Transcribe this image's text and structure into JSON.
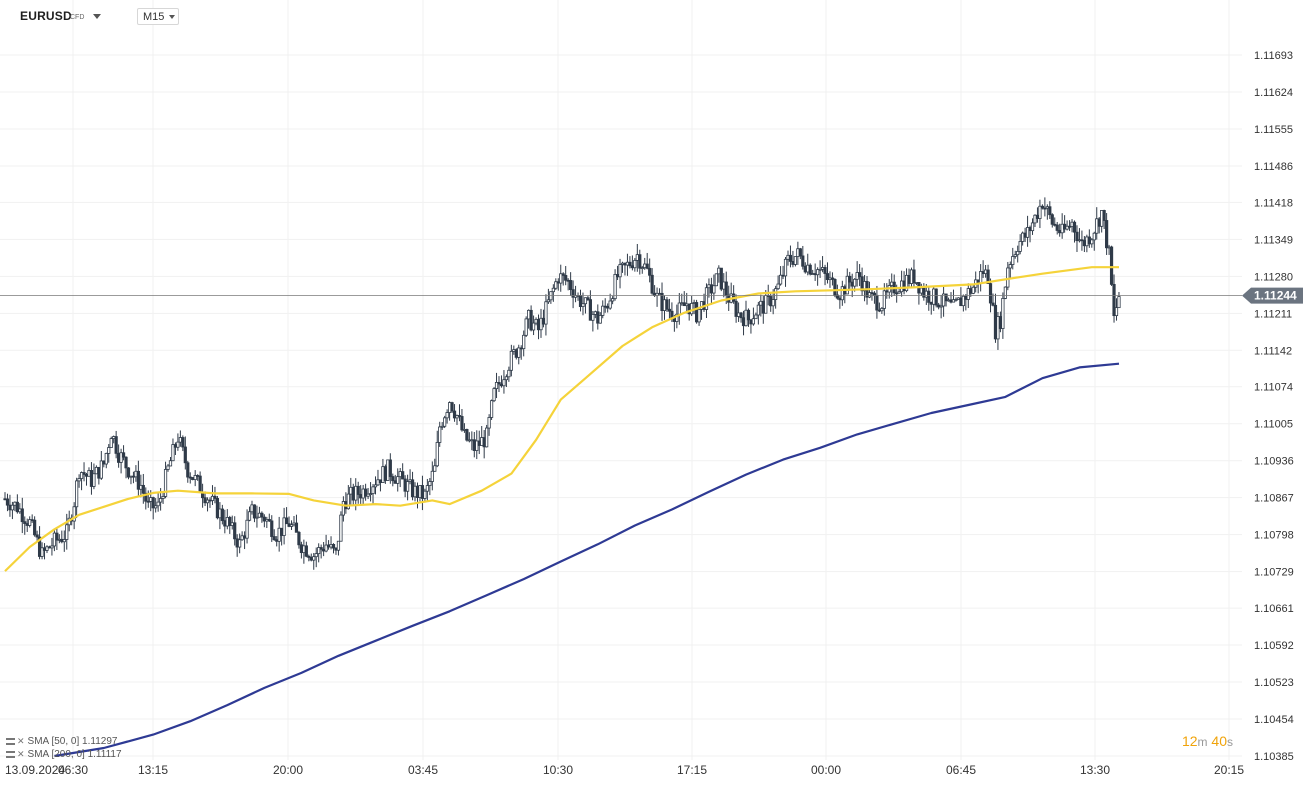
{
  "header": {
    "symbol": "EURUSD",
    "instrument_type": "CFD",
    "timeframe": "M15"
  },
  "indicators": [
    {
      "label": "SMA [50, 0]",
      "value": "1.11297",
      "color": "#f5d33a"
    },
    {
      "label": "SMA [200, 0]",
      "value": "1.11117",
      "color": "#2e3a94"
    }
  ],
  "countdown": {
    "minutes": "12",
    "minute_unit": "m",
    "seconds": "40",
    "second_unit": "s"
  },
  "colors": {
    "candle": "#2f3a48",
    "grid": "#f1f1f1",
    "price_line": "#7a7a7a",
    "price_badge": "#6b7480"
  },
  "chart_data": {
    "type": "candlestick",
    "symbol": "EURUSD",
    "timeframe": "M15",
    "current_price": 1.11244,
    "y_ticks": [
      "1.11693",
      "1.11624",
      "1.11555",
      "1.11486",
      "1.11418",
      "1.11349",
      "1.11280",
      "1.11211",
      "1.11142",
      "1.11074",
      "1.11005",
      "1.10936",
      "1.10867",
      "1.10798",
      "1.10729",
      "1.10661",
      "1.10592",
      "1.10523",
      "1.10454",
      "1.10385"
    ],
    "x_ticks": [
      "13.09.2024",
      "06:30",
      "13:15",
      "20:00",
      "03:45",
      "10:30",
      "17:15",
      "00:00",
      "06:45",
      "13:30",
      "20:15"
    ],
    "grid": true,
    "series": [
      {
        "name": "SMA [50, 0]",
        "color": "#f5d33a",
        "values": [
          [
            0,
            1.1073
          ],
          [
            10,
            1.10775
          ],
          [
            20,
            1.10808
          ],
          [
            30,
            1.10835
          ],
          [
            40,
            1.1085
          ],
          [
            50,
            1.10865
          ],
          [
            60,
            1.10876
          ],
          [
            70,
            1.1088
          ],
          [
            85,
            1.10875
          ],
          [
            100,
            1.10875
          ],
          [
            115,
            1.10874
          ],
          [
            125,
            1.10862
          ],
          [
            138,
            1.10852
          ],
          [
            150,
            1.10855
          ],
          [
            160,
            1.10852
          ],
          [
            173,
            1.10862
          ],
          [
            180,
            1.10855
          ],
          [
            193,
            1.1088
          ],
          [
            205,
            1.10912
          ],
          [
            215,
            1.10975
          ],
          [
            225,
            1.1105
          ],
          [
            235,
            1.1109
          ],
          [
            250,
            1.1115
          ],
          [
            262,
            1.11185
          ],
          [
            275,
            1.11212
          ],
          [
            290,
            1.11235
          ],
          [
            305,
            1.11248
          ],
          [
            320,
            1.11252
          ],
          [
            335,
            1.11254
          ],
          [
            350,
            1.11256
          ],
          [
            370,
            1.1126
          ],
          [
            392,
            1.11265
          ],
          [
            410,
            1.11278
          ],
          [
            420,
            1.11285
          ],
          [
            440,
            1.11297
          ],
          [
            451,
            1.11297
          ]
        ]
      },
      {
        "name": "SMA [200, 0]",
        "color": "#2e3a94",
        "values": [
          [
            20,
            1.10385
          ],
          [
            40,
            1.104
          ],
          [
            60,
            1.10425
          ],
          [
            75,
            1.1045
          ],
          [
            90,
            1.1048
          ],
          [
            105,
            1.10512
          ],
          [
            120,
            1.1054
          ],
          [
            135,
            1.10572
          ],
          [
            150,
            1.106
          ],
          [
            165,
            1.10628
          ],
          [
            180,
            1.10655
          ],
          [
            195,
            1.10685
          ],
          [
            210,
            1.10715
          ],
          [
            225,
            1.10748
          ],
          [
            240,
            1.1078
          ],
          [
            255,
            1.10815
          ],
          [
            270,
            1.10845
          ],
          [
            285,
            1.10878
          ],
          [
            300,
            1.1091
          ],
          [
            315,
            1.10938
          ],
          [
            330,
            1.1096
          ],
          [
            345,
            1.10985
          ],
          [
            360,
            1.11005
          ],
          [
            375,
            1.11025
          ],
          [
            390,
            1.1104
          ],
          [
            405,
            1.11055
          ],
          [
            420,
            1.1109
          ],
          [
            435,
            1.1111
          ],
          [
            451,
            1.11117
          ]
        ]
      }
    ],
    "candles_path": [
      [
        0,
        1.10865
      ],
      [
        5,
        1.1085
      ],
      [
        10,
        1.1082
      ],
      [
        15,
        1.1076
      ],
      [
        20,
        1.10785
      ],
      [
        25,
        1.108
      ],
      [
        28,
        1.1086
      ],
      [
        30,
        1.1092
      ],
      [
        35,
        1.109
      ],
      [
        40,
        1.1093
      ],
      [
        43,
        1.1099
      ],
      [
        46,
        1.1095
      ],
      [
        50,
        1.1092
      ],
      [
        55,
        1.1089
      ],
      [
        58,
        1.1085
      ],
      [
        62,
        1.1085
      ],
      [
        66,
        1.1092
      ],
      [
        70,
        1.1098
      ],
      [
        74,
        1.1092
      ],
      [
        80,
        1.1088
      ],
      [
        85,
        1.1085
      ],
      [
        90,
        1.1082
      ],
      [
        95,
        1.1078
      ],
      [
        100,
        1.1084
      ],
      [
        105,
        1.1083
      ],
      [
        110,
        1.108
      ],
      [
        115,
        1.1082
      ],
      [
        120,
        1.1078
      ],
      [
        125,
        1.1076
      ],
      [
        130,
        1.1078
      ],
      [
        134,
        1.1076
      ],
      [
        137,
        1.1086
      ],
      [
        140,
        1.1087
      ],
      [
        145,
        1.1088
      ],
      [
        150,
        1.109
      ],
      [
        155,
        1.1092
      ],
      [
        160,
        1.109
      ],
      [
        165,
        1.1088
      ],
      [
        170,
        1.1087
      ],
      [
        174,
        1.1092
      ],
      [
        176,
        1.11
      ],
      [
        180,
        1.1105
      ],
      [
        183,
        1.1102
      ],
      [
        186,
        1.1098
      ],
      [
        190,
        1.1096
      ],
      [
        195,
        1.1098
      ],
      [
        198,
        1.1106
      ],
      [
        203,
        1.1111
      ],
      [
        208,
        1.1115
      ],
      [
        212,
        1.112
      ],
      [
        216,
        1.1118
      ],
      [
        220,
        1.1123
      ],
      [
        224,
        1.1128
      ],
      [
        228,
        1.1127
      ],
      [
        232,
        1.1124
      ],
      [
        236,
        1.1122
      ],
      [
        240,
        1.112
      ],
      [
        244,
        1.1123
      ],
      [
        248,
        1.1128
      ],
      [
        252,
        1.113
      ],
      [
        256,
        1.1132
      ],
      [
        260,
        1.1129
      ],
      [
        264,
        1.1124
      ],
      [
        268,
        1.1122
      ],
      [
        272,
        1.1121
      ],
      [
        276,
        1.1123
      ],
      [
        280,
        1.1121
      ],
      [
        285,
        1.1125
      ],
      [
        289,
        1.1128
      ],
      [
        293,
        1.1124
      ],
      [
        297,
        1.1121
      ],
      [
        301,
        1.112
      ],
      [
        305,
        1.1122
      ],
      [
        309,
        1.1123
      ],
      [
        313,
        1.1126
      ],
      [
        317,
        1.1131
      ],
      [
        321,
        1.1132
      ],
      [
        325,
        1.113
      ],
      [
        330,
        1.1129
      ],
      [
        334,
        1.1127
      ],
      [
        338,
        1.1125
      ],
      [
        342,
        1.1127
      ],
      [
        346,
        1.1128
      ],
      [
        350,
        1.1124
      ],
      [
        355,
        1.1123
      ],
      [
        360,
        1.1126
      ],
      [
        364,
        1.1127
      ],
      [
        368,
        1.1128
      ],
      [
        372,
        1.1125
      ],
      [
        376,
        1.1124
      ],
      [
        380,
        1.1123
      ],
      [
        384,
        1.1122
      ],
      [
        388,
        1.1124
      ],
      [
        392,
        1.1126
      ],
      [
        396,
        1.1129
      ],
      [
        398,
        1.1128
      ],
      [
        401,
        1.1118
      ],
      [
        403,
        1.112
      ],
      [
        406,
        1.113
      ],
      [
        410,
        1.1134
      ],
      [
        414,
        1.1136
      ],
      [
        418,
        1.114
      ],
      [
        420,
        1.1142
      ],
      [
        424,
        1.1138
      ],
      [
        428,
        1.1136
      ],
      [
        432,
        1.1138
      ],
      [
        436,
        1.1134
      ],
      [
        440,
        1.1136
      ],
      [
        444,
        1.114
      ],
      [
        447,
        1.1132
      ],
      [
        449,
        1.112
      ],
      [
        451,
        1.11244
      ]
    ]
  }
}
